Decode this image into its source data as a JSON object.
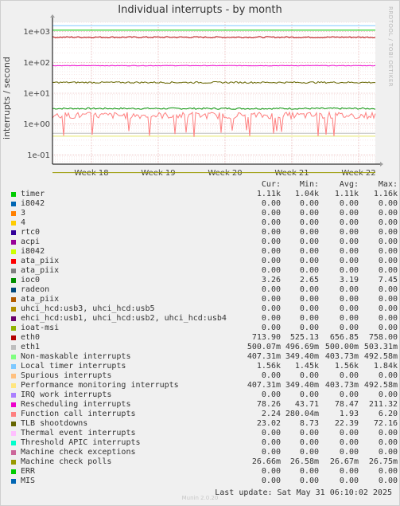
{
  "chart_data": {
    "type": "line",
    "title": "Individual interrupts - by month",
    "ylabel": "interrupts / second",
    "yscale": "log",
    "ylim": [
      0.05,
      2000
    ],
    "y_ticks": [
      {
        "value": 1000,
        "label": "1e+03"
      },
      {
        "value": 100,
        "label": "1e+02"
      },
      {
        "value": 10,
        "label": "1e+01"
      },
      {
        "value": 1,
        "label": "1e+00"
      },
      {
        "value": 0.1,
        "label": "1e-01"
      }
    ],
    "x_ticks": [
      "Week 18",
      "Week 19",
      "Week 20",
      "Week 21",
      "Week 22"
    ],
    "grid": true,
    "column_headers": [
      "Cur:",
      "Min:",
      "Avg:",
      "Max:"
    ],
    "series": [
      {
        "name": "timer",
        "color": "#00cc00",
        "cur": "1.11k",
        "min": "1.04k",
        "avg": "1.11k",
        "max": "1.16k",
        "level": 1110
      },
      {
        "name": "i8042",
        "color": "#0066b3",
        "cur": "0.00",
        "min": "0.00",
        "avg": "0.00",
        "max": "0.00"
      },
      {
        "name": "3",
        "color": "#ff8000",
        "cur": "0.00",
        "min": "0.00",
        "avg": "0.00",
        "max": "0.00"
      },
      {
        "name": "4",
        "color": "#ffcc00",
        "cur": "0.00",
        "min": "0.00",
        "avg": "0.00",
        "max": "0.00"
      },
      {
        "name": "rtc0",
        "color": "#330099",
        "cur": "0.00",
        "min": "0.00",
        "avg": "0.00",
        "max": "0.00"
      },
      {
        "name": "acpi",
        "color": "#990099",
        "cur": "0.00",
        "min": "0.00",
        "avg": "0.00",
        "max": "0.00"
      },
      {
        "name": "i8042",
        "color": "#ccff00",
        "cur": "0.00",
        "min": "0.00",
        "avg": "0.00",
        "max": "0.00"
      },
      {
        "name": "ata_piix",
        "color": "#ff0000",
        "cur": "0.00",
        "min": "0.00",
        "avg": "0.00",
        "max": "0.00"
      },
      {
        "name": "ata_piix",
        "color": "#808080",
        "cur": "0.00",
        "min": "0.00",
        "avg": "0.00",
        "max": "0.00"
      },
      {
        "name": "ioc0",
        "color": "#008f00",
        "cur": "3.26",
        "min": "2.65",
        "avg": "3.19",
        "max": "7.45",
        "level": 3.19
      },
      {
        "name": "radeon",
        "color": "#00487d",
        "cur": "0.00",
        "min": "0.00",
        "avg": "0.00",
        "max": "0.00"
      },
      {
        "name": "ata_piix",
        "color": "#b35a00",
        "cur": "0.00",
        "min": "0.00",
        "avg": "0.00",
        "max": "0.00"
      },
      {
        "name": "uhci_hcd:usb3, uhci_hcd:usb5",
        "color": "#b38f00",
        "cur": "0.00",
        "min": "0.00",
        "avg": "0.00",
        "max": "0.00"
      },
      {
        "name": "ehci_hcd:usb1, uhci_hcd:usb2, uhci_hcd:usb4",
        "color": "#6b006b",
        "cur": "0.00",
        "min": "0.00",
        "avg": "0.00",
        "max": "0.00"
      },
      {
        "name": "ioat-msi",
        "color": "#8fb300",
        "cur": "0.00",
        "min": "0.00",
        "avg": "0.00",
        "max": "0.00"
      },
      {
        "name": "eth0",
        "color": "#b30000",
        "cur": "713.90",
        "min": "525.13",
        "avg": "656.85",
        "max": "758.00",
        "level": 656.85
      },
      {
        "name": "eth1",
        "color": "#bebebe",
        "cur": "500.07m",
        "min": "496.69m",
        "avg": "500.00m",
        "max": "503.31m",
        "level": 0.5
      },
      {
        "name": "Non-maskable interrupts",
        "color": "#80ff80",
        "cur": "407.31m",
        "min": "349.40m",
        "avg": "403.73m",
        "max": "492.58m",
        "level": 0.4037
      },
      {
        "name": "Local timer interrupts",
        "color": "#80c9ff",
        "cur": "1.56k",
        "min": "1.45k",
        "avg": "1.56k",
        "max": "1.84k",
        "level": 1560
      },
      {
        "name": "Spurious interrupts",
        "color": "#ffc080",
        "cur": "0.00",
        "min": "0.00",
        "avg": "0.00",
        "max": "0.00"
      },
      {
        "name": "Performance monitoring interrupts",
        "color": "#ffe680",
        "cur": "407.31m",
        "min": "349.40m",
        "avg": "403.73m",
        "max": "492.58m",
        "level": 0.4037
      },
      {
        "name": "IRQ work interrupts",
        "color": "#aa80ff",
        "cur": "0.00",
        "min": "0.00",
        "avg": "0.00",
        "max": "0.00"
      },
      {
        "name": "Rescheduling interrupts",
        "color": "#ee00cc",
        "cur": "78.26",
        "min": "43.71",
        "avg": "78.47",
        "max": "211.32",
        "level": 78.47
      },
      {
        "name": "Function call interrupts",
        "color": "#ff8080",
        "cur": "2.24",
        "min": "280.04m",
        "avg": "1.93",
        "max": "6.20",
        "level": 1.93
      },
      {
        "name": "TLB shootdowns",
        "color": "#666600",
        "cur": "23.02",
        "min": "8.73",
        "avg": "22.39",
        "max": "72.16",
        "level": 22.39
      },
      {
        "name": "Thermal event interrupts",
        "color": "#ffbfff",
        "cur": "0.00",
        "min": "0.00",
        "avg": "0.00",
        "max": "0.00"
      },
      {
        "name": "Threshold APIC interrupts",
        "color": "#00ffcc",
        "cur": "0.00",
        "min": "0.00",
        "avg": "0.00",
        "max": "0.00"
      },
      {
        "name": "Machine check exceptions",
        "color": "#cc6699",
        "cur": "0.00",
        "min": "0.00",
        "avg": "0.00",
        "max": "0.00"
      },
      {
        "name": "Machine check polls",
        "color": "#999900",
        "cur": "26.66m",
        "min": "26.58m",
        "avg": "26.67m",
        "max": "26.75m",
        "level": 0.02667
      },
      {
        "name": "ERR",
        "color": "#00cc00",
        "cur": "0.00",
        "min": "0.00",
        "avg": "0.00",
        "max": "0.00"
      },
      {
        "name": "MIS",
        "color": "#0066b3",
        "cur": "0.00",
        "min": "0.00",
        "avg": "0.00",
        "max": "0.00"
      }
    ]
  },
  "side_label": "RRDTOOL / TOBI OETIKER",
  "footer": "Last update: Sat May 31 06:10:02 2025",
  "munin": "Munin 2.0.20"
}
